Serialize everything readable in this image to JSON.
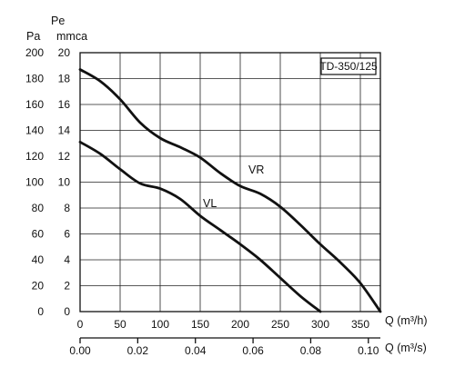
{
  "chart_data": {
    "type": "line",
    "model_label": "TD-350/125",
    "left_axis": {
      "title": "Pa",
      "ylim": [
        0,
        200
      ],
      "ticks": [
        0,
        20,
        40,
        60,
        80,
        100,
        120,
        140,
        160,
        180,
        200
      ]
    },
    "right_axis": {
      "title_line1": "Pe",
      "title_line2": "mmca",
      "ylim": [
        0,
        20
      ],
      "ticks": [
        0,
        2,
        4,
        6,
        8,
        10,
        12,
        14,
        16,
        18,
        20
      ]
    },
    "x_axis": {
      "label": "Q (m³/h)",
      "xlim": [
        0,
        375
      ],
      "ticks": [
        0,
        50,
        100,
        150,
        200,
        250,
        300,
        350
      ]
    },
    "x_axis2": {
      "label": "Q (m³/s)",
      "ticks": [
        0.0,
        0.02,
        0.04,
        0.06,
        0.08,
        0.1
      ],
      "tick_labels": [
        "0.00",
        "0.02",
        "0.04",
        "0.06",
        "0.08",
        "0.10"
      ]
    },
    "grid": true,
    "series": [
      {
        "name": "VR",
        "x": [
          0,
          25,
          50,
          75,
          100,
          125,
          150,
          175,
          200,
          225,
          250,
          275,
          300,
          325,
          350,
          375
        ],
        "y": [
          187,
          178,
          164,
          146,
          134,
          127,
          119,
          107,
          97,
          91,
          81,
          67,
          52,
          38,
          22,
          0
        ]
      },
      {
        "name": "VL",
        "x": [
          0,
          25,
          50,
          75,
          100,
          125,
          150,
          175,
          200,
          225,
          250,
          275,
          300
        ],
        "y": [
          131,
          122,
          110,
          99,
          95,
          87,
          74,
          63,
          52,
          40,
          26,
          12,
          0
        ]
      }
    ]
  }
}
